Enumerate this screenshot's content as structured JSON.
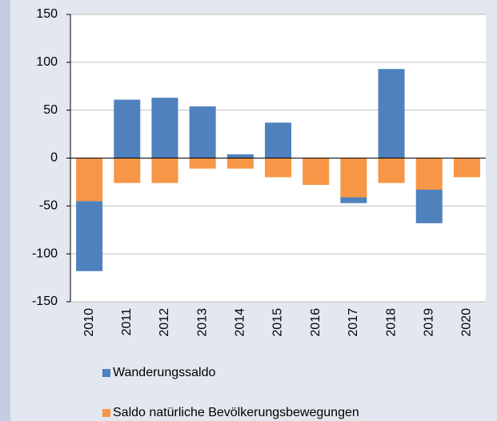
{
  "chart_data": {
    "type": "bar",
    "stacked": true,
    "categories": [
      "2010",
      "2011",
      "2012",
      "2013",
      "2014",
      "2015",
      "2016",
      "2017",
      "2018",
      "2019",
      "2020"
    ],
    "series": [
      {
        "name": "Wanderungssaldo",
        "color": "#4f81bd",
        "values": [
          -73,
          61,
          63,
          54,
          4,
          37,
          0,
          -6,
          93,
          -35,
          0
        ]
      },
      {
        "name": "Saldo natürliche Bevölkerungsbewegungen",
        "color": "#f79646",
        "values": [
          -45,
          -26,
          -26,
          -11,
          -11,
          -20,
          -28,
          -41,
          -26,
          -33,
          -20
        ]
      }
    ],
    "ylim": [
      -150,
      150
    ],
    "yticks": [
      -150,
      -100,
      -50,
      0,
      50,
      100,
      150
    ],
    "grid": true,
    "legend": "bottom"
  }
}
